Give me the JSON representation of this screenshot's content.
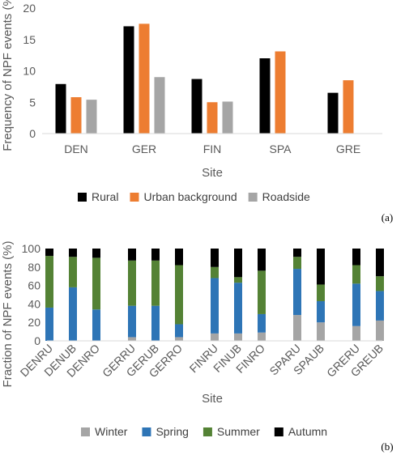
{
  "chart_data": [
    {
      "type": "bar",
      "panel_label": "(a)",
      "categories": [
        "DEN",
        "GER",
        "FIN",
        "SPA",
        "GRE"
      ],
      "series": [
        {
          "name": "Rural",
          "color": "#000000",
          "values": [
            7.9,
            17.1,
            8.7,
            12.0,
            6.5
          ]
        },
        {
          "name": "Urban background",
          "color": "#ED7D31",
          "values": [
            5.8,
            17.5,
            5.0,
            13.1,
            8.5
          ]
        },
        {
          "name": "Roadside",
          "color": "#A5A5A5",
          "values": [
            5.4,
            9.0,
            5.1,
            null,
            null
          ]
        }
      ],
      "xlabel": "Site",
      "ylabel": "Frequency of NPF events (%)",
      "ylim": [
        0,
        20
      ],
      "yticks": [
        0,
        5,
        10,
        15,
        20
      ],
      "grid": false,
      "legend": "bottom"
    },
    {
      "type": "bar",
      "stacked": true,
      "panel_label": "(b)",
      "categories": [
        "DENRU",
        "DENUB",
        "DENRO",
        "GERRU",
        "GERUB",
        "GERRO",
        "FINRU",
        "FINUB",
        "FINRO",
        "SPARU",
        "SPAUB",
        "GRERU",
        "GREUB"
      ],
      "groups": [
        [
          "DENRU",
          "DENUB",
          "DENRO"
        ],
        [
          "GERRU",
          "GERUB",
          "GERRO"
        ],
        [
          "FINRU",
          "FINUB",
          "FINRO"
        ],
        [
          "SPARU",
          "SPAUB"
        ],
        [
          "GRERU",
          "GREUB"
        ]
      ],
      "series": [
        {
          "name": "Winter",
          "color": "#A5A5A5",
          "values": [
            0,
            0,
            0,
            4,
            0,
            4,
            8,
            8,
            9,
            28,
            20,
            16,
            22
          ]
        },
        {
          "name": "Spring",
          "color": "#2E75B6",
          "values": [
            36,
            58,
            34,
            34,
            38,
            14,
            60,
            55,
            20,
            50,
            23,
            46,
            32
          ]
        },
        {
          "name": "Summer",
          "color": "#548235",
          "values": [
            56,
            33,
            56,
            49,
            49,
            64,
            12,
            6,
            47,
            13,
            18,
            20,
            16
          ]
        },
        {
          "name": "Autumn",
          "color": "#000000",
          "values": [
            8,
            9,
            10,
            13,
            13,
            18,
            20,
            31,
            24,
            9,
            39,
            18,
            30
          ]
        }
      ],
      "xlabel": "Site",
      "ylabel": "Fraction of NPF events (%)",
      "ylim": [
        0,
        100
      ],
      "yticks": [
        0,
        20,
        40,
        60,
        80,
        100
      ],
      "grid": false,
      "legend": "bottom"
    }
  ]
}
